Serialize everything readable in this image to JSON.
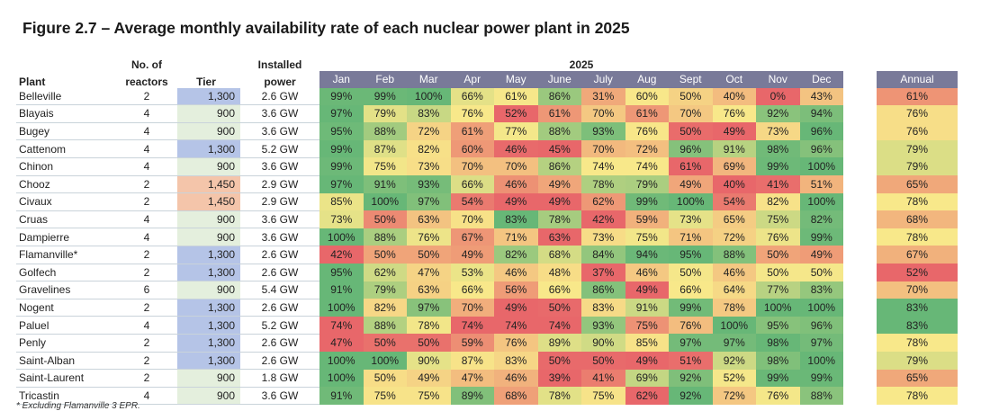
{
  "title": "Figure 2.7 – Average monthly availability rate of each nuclear power plant in 2025",
  "footnote": "* Excluding Flamanville 3 EPR.",
  "chart_data": {
    "type": "heatmap",
    "title": "Figure 2.7 – Average monthly availability rate of each nuclear power plant in 2025",
    "year_label": "2025",
    "headers": {
      "plant": "Plant",
      "reactors_1": "No. of",
      "reactors_2": "reactors",
      "tier": "Tier",
      "power_1": "Installed",
      "power_2": "power",
      "annual": "Annual"
    },
    "months": [
      "Jan",
      "Feb",
      "Mar",
      "Apr",
      "May",
      "June",
      "July",
      "Aug",
      "Sept",
      "Oct",
      "Nov",
      "Dec"
    ],
    "tier_colors": {
      "1,300": "#b5c4e7",
      "900": "#e4efdd",
      "1,450": "#f4c5aa"
    },
    "scale_colors": {
      "low": "#e8676a",
      "mid": "#f8e88a",
      "high": "#67b777"
    },
    "header_color": "#797a99",
    "rows": [
      {
        "plant": "Belleville",
        "reactors": "2",
        "tier": "1,300",
        "power": "2.6 GW",
        "values": [
          99,
          99,
          100,
          66,
          61,
          86,
          31,
          60,
          50,
          40,
          0,
          43
        ],
        "annual": 61
      },
      {
        "plant": "Blayais",
        "reactors": "4",
        "tier": "900",
        "power": "3.6 GW",
        "values": [
          97,
          79,
          83,
          76,
          52,
          61,
          70,
          61,
          70,
          76,
          92,
          94
        ],
        "annual": 76
      },
      {
        "plant": "Bugey",
        "reactors": "4",
        "tier": "900",
        "power": "3.6 GW",
        "values": [
          95,
          88,
          72,
          61,
          77,
          88,
          93,
          76,
          50,
          49,
          73,
          96
        ],
        "annual": 76
      },
      {
        "plant": "Cattenom",
        "reactors": "4",
        "tier": "1,300",
        "power": "5.2 GW",
        "values": [
          99,
          87,
          82,
          60,
          46,
          45,
          70,
          72,
          96,
          91,
          98,
          96
        ],
        "annual": 79
      },
      {
        "plant": "Chinon",
        "reactors": "4",
        "tier": "900",
        "power": "3.6 GW",
        "values": [
          99,
          75,
          73,
          70,
          70,
          86,
          74,
          74,
          61,
          69,
          99,
          100
        ],
        "annual": 79
      },
      {
        "plant": "Chooz",
        "reactors": "2",
        "tier": "1,450",
        "power": "2.9 GW",
        "values": [
          97,
          91,
          93,
          66,
          46,
          49,
          78,
          79,
          49,
          40,
          41,
          51
        ],
        "annual": 65
      },
      {
        "plant": "Civaux",
        "reactors": "2",
        "tier": "1,450",
        "power": "2.9 GW",
        "values": [
          85,
          100,
          97,
          54,
          49,
          49,
          62,
          99,
          100,
          54,
          82,
          100
        ],
        "annual": 78
      },
      {
        "plant": "Cruas",
        "reactors": "4",
        "tier": "900",
        "power": "3.6 GW",
        "values": [
          73,
          50,
          63,
          70,
          83,
          78,
          42,
          59,
          73,
          65,
          75,
          82
        ],
        "annual": 68
      },
      {
        "plant": "Dampierre",
        "reactors": "4",
        "tier": "900",
        "power": "3.6 GW",
        "values": [
          100,
          88,
          76,
          67,
          71,
          63,
          73,
          75,
          71,
          72,
          76,
          99
        ],
        "annual": 78
      },
      {
        "plant": "Flamanville*",
        "reactors": "2",
        "tier": "1,300",
        "power": "2.6 GW",
        "values": [
          42,
          50,
          50,
          49,
          82,
          68,
          84,
          94,
          95,
          88,
          50,
          49
        ],
        "annual": 67
      },
      {
        "plant": "Golfech",
        "reactors": "2",
        "tier": "1,300",
        "power": "2.6 GW",
        "values": [
          95,
          62,
          47,
          53,
          46,
          48,
          37,
          46,
          50,
          46,
          50,
          50
        ],
        "annual": 52
      },
      {
        "plant": "Gravelines",
        "reactors": "6",
        "tier": "900",
        "power": "5.4 GW",
        "values": [
          91,
          79,
          63,
          66,
          56,
          66,
          86,
          49,
          66,
          64,
          77,
          83
        ],
        "annual": 70
      },
      {
        "plant": "Nogent",
        "reactors": "2",
        "tier": "1,300",
        "power": "2.6 GW",
        "values": [
          100,
          82,
          97,
          70,
          49,
          50,
          83,
          91,
          99,
          78,
          100,
          100
        ],
        "annual": 83
      },
      {
        "plant": "Paluel",
        "reactors": "4",
        "tier": "1,300",
        "power": "5.2 GW",
        "values": [
          74,
          88,
          78,
          74,
          74,
          74,
          93,
          75,
          76,
          100,
          95,
          96
        ],
        "annual": 83
      },
      {
        "plant": "Penly",
        "reactors": "2",
        "tier": "1,300",
        "power": "2.6 GW",
        "values": [
          47,
          50,
          50,
          59,
          76,
          89,
          90,
          85,
          97,
          97,
          98,
          97
        ],
        "annual": 78
      },
      {
        "plant": "Saint-Alban",
        "reactors": "2",
        "tier": "1,300",
        "power": "2.6 GW",
        "values": [
          100,
          100,
          90,
          87,
          83,
          50,
          50,
          49,
          51,
          92,
          98,
          100
        ],
        "annual": 79
      },
      {
        "plant": "Saint-Laurent",
        "reactors": "2",
        "tier": "900",
        "power": "1.8 GW",
        "values": [
          100,
          50,
          49,
          47,
          46,
          39,
          41,
          69,
          92,
          52,
          99,
          99
        ],
        "annual": 65
      },
      {
        "plant": "Tricastin",
        "reactors": "4",
        "tier": "900",
        "power": "3.6 GW",
        "values": [
          91,
          75,
          75,
          89,
          68,
          78,
          75,
          62,
          92,
          72,
          76,
          88
        ],
        "annual": 78
      }
    ]
  }
}
